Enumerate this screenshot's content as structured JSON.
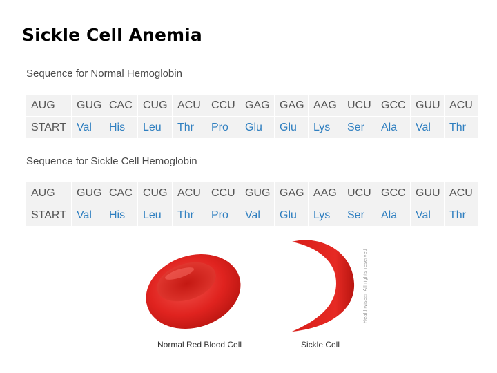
{
  "slide": {
    "title": "Sickle Cell Anemia"
  },
  "normal": {
    "heading": "Sequence for Normal Hemoglobin",
    "codons": [
      "AUG",
      "GUG",
      "CAC",
      "CUG",
      "ACU",
      "CCU",
      "GAG",
      "GAG",
      "AAG",
      "UCU",
      "GCC",
      "GUU",
      "ACU"
    ],
    "aminos": [
      "START",
      "Val",
      "His",
      "Leu",
      "Thr",
      "Pro",
      "Glu",
      "Glu",
      "Lys",
      "Ser",
      "Ala",
      "Val",
      "Thr"
    ]
  },
  "sickle": {
    "heading": "Sequence for Sickle Cell Hemoglobin",
    "codons": [
      "AUG",
      "GUG",
      "CAC",
      "CUG",
      "ACU",
      "CCU",
      "GUG",
      "GAG",
      "AAG",
      "UCU",
      "GCC",
      "GUU",
      "ACU"
    ],
    "aminos": [
      "START",
      "Val",
      "His",
      "Leu",
      "Thr",
      "Pro",
      "Val",
      "Glu",
      "Lys",
      "Ser",
      "Ala",
      "Val",
      "Thr"
    ]
  },
  "images": {
    "normal_caption": "Normal Red Blood Cell",
    "sickle_caption": "Sickle Cell",
    "copyright": "Healthwise® All rights reserved",
    "cell_color": "#e0231f",
    "cell_highlight": "#f0524a",
    "cell_shadow": "#b81510"
  },
  "colors": {
    "amino_text": "#2f7fc0",
    "codon_text": "#555555",
    "table_bg": "#f2f2f2"
  }
}
